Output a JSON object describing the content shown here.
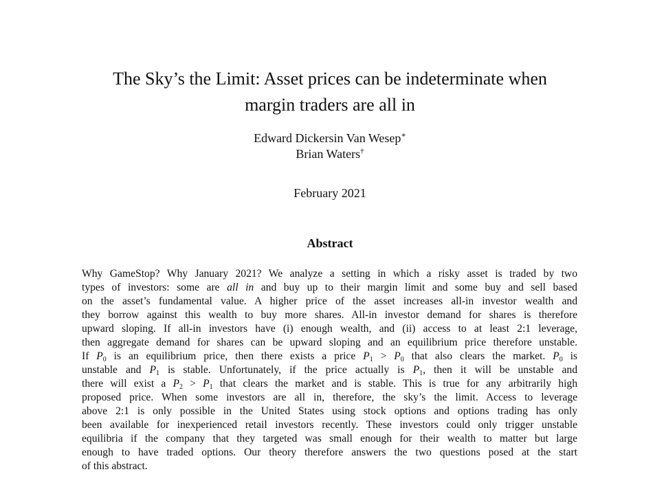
{
  "paper": {
    "title_line1": "The Sky’s the Limit: Asset prices can be indeterminate when",
    "title_line2": "margin traders are all in",
    "authors": [
      {
        "name": "Edward Dickersin Van Wesep",
        "mark": "∗"
      },
      {
        "name": "Brian Waters",
        "mark": "†"
      }
    ],
    "date": "February 2021",
    "abstract_heading": "Abstract",
    "abstract_lines": [
      [
        {
          "t": "Why GameStop? Why January 2021? We analyze a setting in which a risky asset is traded by two"
        }
      ],
      [
        {
          "t": "types of investors: some are "
        },
        {
          "t": "all in",
          "style": "i"
        },
        {
          "t": " and buy up to their margin limit and some buy and sell based"
        }
      ],
      [
        {
          "t": "on the asset’s fundamental value.  A higher price of the asset increases all-in investor wealth and"
        }
      ],
      [
        {
          "t": "they borrow against this wealth to buy more shares. All-in investor demand for shares is therefore"
        }
      ],
      [
        {
          "t": "upward sloping.  If all-in investors have (i) enough wealth, and (ii) access to at least 2:1 leverage,"
        }
      ],
      [
        {
          "t": "then aggregate demand for shares can be upward sloping and an equilibrium price therefore unstable."
        }
      ],
      [
        {
          "t": "If "
        },
        {
          "t": "P",
          "style": "i"
        },
        {
          "t": "0",
          "style": "sub"
        },
        {
          "t": " is an equilibrium price, then there exists a price "
        },
        {
          "t": "P",
          "style": "i"
        },
        {
          "t": "1",
          "style": "sub"
        },
        {
          "t": " > "
        },
        {
          "t": "P",
          "style": "i"
        },
        {
          "t": "0",
          "style": "sub"
        },
        {
          "t": " that also clears the market.  "
        },
        {
          "t": "P",
          "style": "i"
        },
        {
          "t": "0",
          "style": "sub"
        },
        {
          "t": " is"
        }
      ],
      [
        {
          "t": "unstable and "
        },
        {
          "t": "P",
          "style": "i"
        },
        {
          "t": "1",
          "style": "sub"
        },
        {
          "t": " is stable.  Unfortunately, if the price actually is "
        },
        {
          "t": "P",
          "style": "i"
        },
        {
          "t": "1",
          "style": "sub"
        },
        {
          "t": ", then it will be unstable and"
        }
      ],
      [
        {
          "t": "there will exist a "
        },
        {
          "t": "P",
          "style": "i"
        },
        {
          "t": "2",
          "style": "sub"
        },
        {
          "t": " > "
        },
        {
          "t": "P",
          "style": "i"
        },
        {
          "t": "1",
          "style": "sub"
        },
        {
          "t": " that clears the market and is stable. This is true for any arbitrarily high"
        }
      ],
      [
        {
          "t": "proposed price.  When some investors are all in, therefore, the sky’s the limit.  Access to leverage"
        }
      ],
      [
        {
          "t": "above 2:1 is only possible in the United States using stock options and options trading has only"
        }
      ],
      [
        {
          "t": "been available for inexperienced retail investors recently. These investors could only trigger unstable"
        }
      ],
      [
        {
          "t": "equilibria if the company that they targeted was small enough for their wealth to matter but large"
        }
      ],
      [
        {
          "t": "enough to have traded options.  Our theory therefore answers the two questions posed at the start"
        }
      ],
      [
        {
          "t": "of this abstract."
        }
      ]
    ]
  }
}
